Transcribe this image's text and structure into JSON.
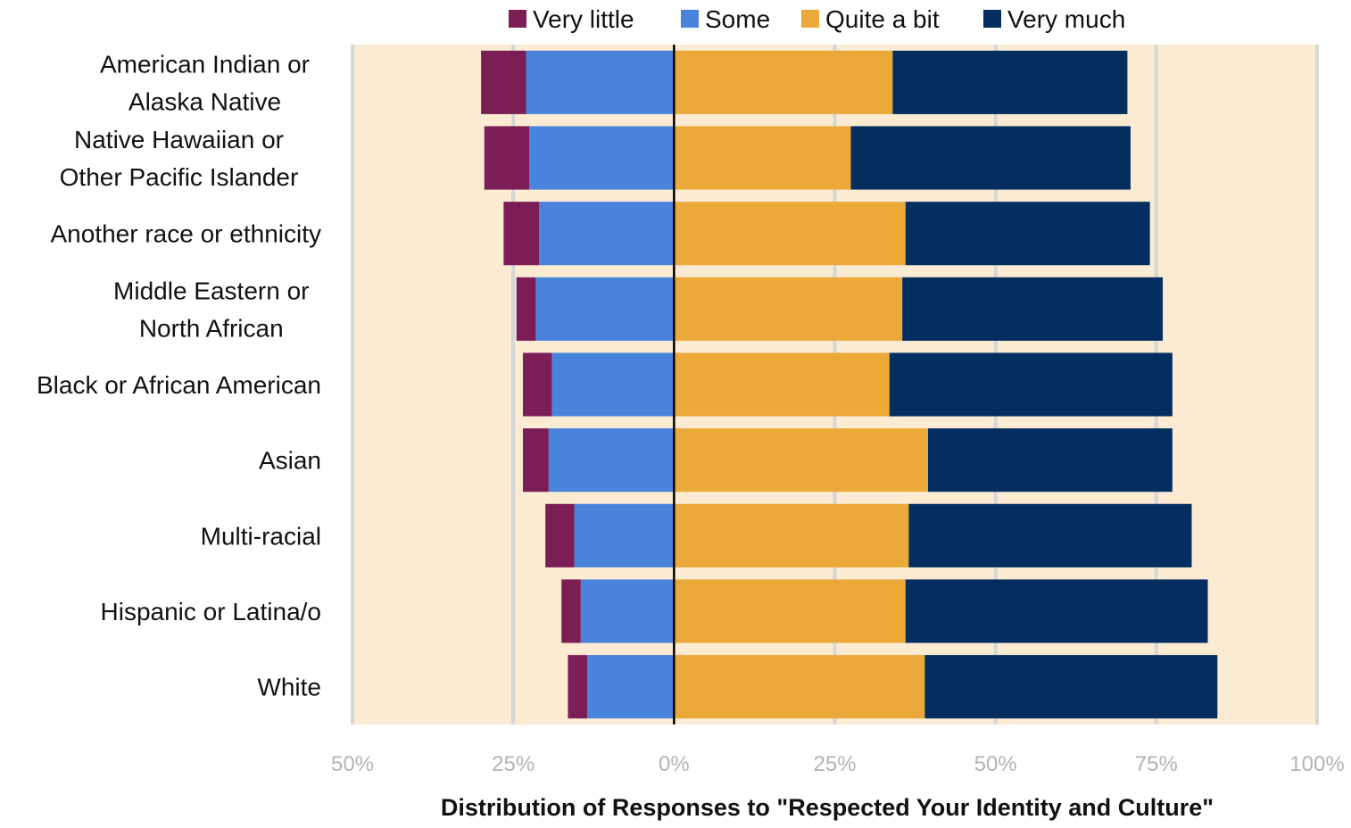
{
  "chart_data": {
    "type": "bar",
    "orientation": "horizontal",
    "stacked": "diverging",
    "title": "",
    "xlabel": "Distribution of Responses to \"Respected Your Identity and Culture\"",
    "ylabel": "",
    "xlim": [
      -50,
      100
    ],
    "xticks": [
      -50,
      -25,
      0,
      25,
      50,
      75,
      100
    ],
    "xtick_labels": [
      "50%",
      "25%",
      "0%",
      "25%",
      "50%",
      "75%",
      "100%"
    ],
    "grid": "vertical",
    "legend_position": "top",
    "categories": [
      [
        "American Indian or",
        "Alaska Native"
      ],
      [
        "Native Hawaiian or",
        "Other Pacific Islander"
      ],
      [
        "Another race or ethnicity"
      ],
      [
        "Middle Eastern or",
        "North African"
      ],
      [
        "Black or African American"
      ],
      [
        "Asian"
      ],
      [
        "Multi-racial"
      ],
      [
        "Hispanic or Latina/o"
      ],
      [
        "White"
      ]
    ],
    "series": [
      {
        "name": "Very little",
        "side": "negative",
        "color": "#7b1e56",
        "values": [
          7,
          7,
          5.5,
          3,
          4.5,
          4,
          4.5,
          3,
          3
        ]
      },
      {
        "name": "Some",
        "side": "negative",
        "color": "#4a83dc",
        "values": [
          23,
          22.5,
          21,
          21.5,
          19,
          19.5,
          15.5,
          14.5,
          13.5
        ]
      },
      {
        "name": "Quite a bit",
        "side": "positive",
        "color": "#eba939",
        "values": [
          34,
          27.5,
          36,
          35.5,
          33.5,
          39.5,
          36.5,
          36,
          39
        ]
      },
      {
        "name": "Very much",
        "side": "positive",
        "color": "#032e5f",
        "values": [
          36.5,
          43.5,
          38,
          40.5,
          44,
          38,
          44,
          47,
          45.5
        ]
      }
    ],
    "colors": {
      "plot_background": "#fcebd3",
      "gridline": "#d6d6d6",
      "zero_line": "#000000"
    }
  }
}
